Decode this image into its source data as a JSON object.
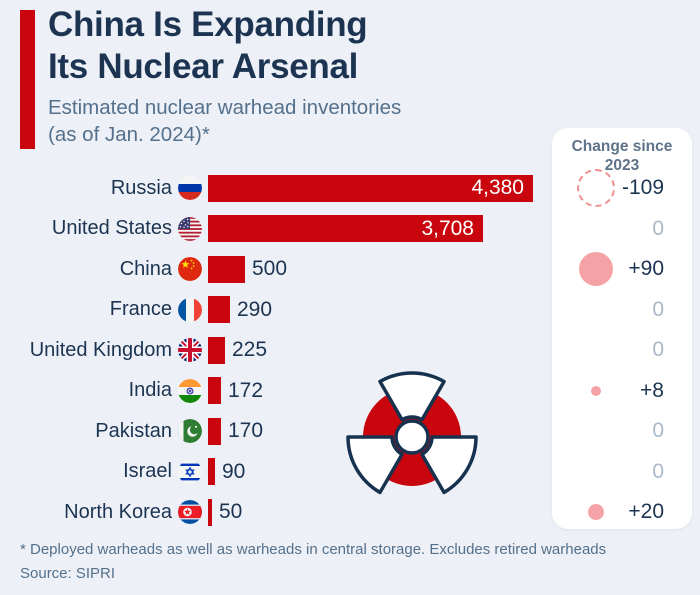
{
  "header": {
    "title_line1": "China Is Expanding",
    "title_line2": "Its Nuclear Arsenal",
    "subtitle_line1": "Estimated nuclear warhead inventories",
    "subtitle_line2": "(as of Jan. 2024)*"
  },
  "panel": {
    "header_line1": "Change since",
    "header_line2": "2023"
  },
  "footer": {
    "note": "* Deployed warheads as well as warheads in central storage. Excludes retired warheads",
    "source": "Source: SIPRI"
  },
  "icons": {
    "center_graphic": "radiation-trefoil-icon"
  },
  "colors": {
    "background": "#edf1f7",
    "bar_red": "#c9060d",
    "title_navy": "#1c3451",
    "subtitle_gray_blue": "#54708c",
    "zero_change_gray": "#a9b9ca",
    "positive_change_pink": "#f4a2a6",
    "negative_change_dashed_pink": "#ee8f8f",
    "panel_white": "#ffffff"
  },
  "chart_data": {
    "type": "bar",
    "orientation": "horizontal",
    "title": "Estimated nuclear warhead inventories (as of Jan. 2024)",
    "unit": "warheads",
    "xlim": [
      0,
      4380
    ],
    "grid": false,
    "legend_position": "right-panel",
    "rows": [
      {
        "country": "Russia",
        "flag_icon": "flag-russia-icon",
        "value": 4380,
        "value_label": "4,380",
        "change": -109,
        "change_label": "-109"
      },
      {
        "country": "United States",
        "flag_icon": "flag-united-states-icon",
        "value": 3708,
        "value_label": "3,708",
        "change": 0,
        "change_label": "0"
      },
      {
        "country": "China",
        "flag_icon": "flag-china-icon",
        "value": 500,
        "value_label": "500",
        "change": 90,
        "change_label": "+90"
      },
      {
        "country": "France",
        "flag_icon": "flag-france-icon",
        "value": 290,
        "value_label": "290",
        "change": 0,
        "change_label": "0"
      },
      {
        "country": "United Kingdom",
        "flag_icon": "flag-united-kingdom-icon",
        "value": 225,
        "value_label": "225",
        "change": 0,
        "change_label": "0"
      },
      {
        "country": "India",
        "flag_icon": "flag-india-icon",
        "value": 172,
        "value_label": "172",
        "change": 8,
        "change_label": "+8"
      },
      {
        "country": "Pakistan",
        "flag_icon": "flag-pakistan-icon",
        "value": 170,
        "value_label": "170",
        "change": 0,
        "change_label": "0"
      },
      {
        "country": "Israel",
        "flag_icon": "flag-israel-icon",
        "value": 90,
        "value_label": "90",
        "change": 0,
        "change_label": "0"
      },
      {
        "country": "North Korea",
        "flag_icon": "flag-north-korea-icon",
        "value": 50,
        "value_label": "50",
        "change": 20,
        "change_label": "+20"
      }
    ]
  }
}
